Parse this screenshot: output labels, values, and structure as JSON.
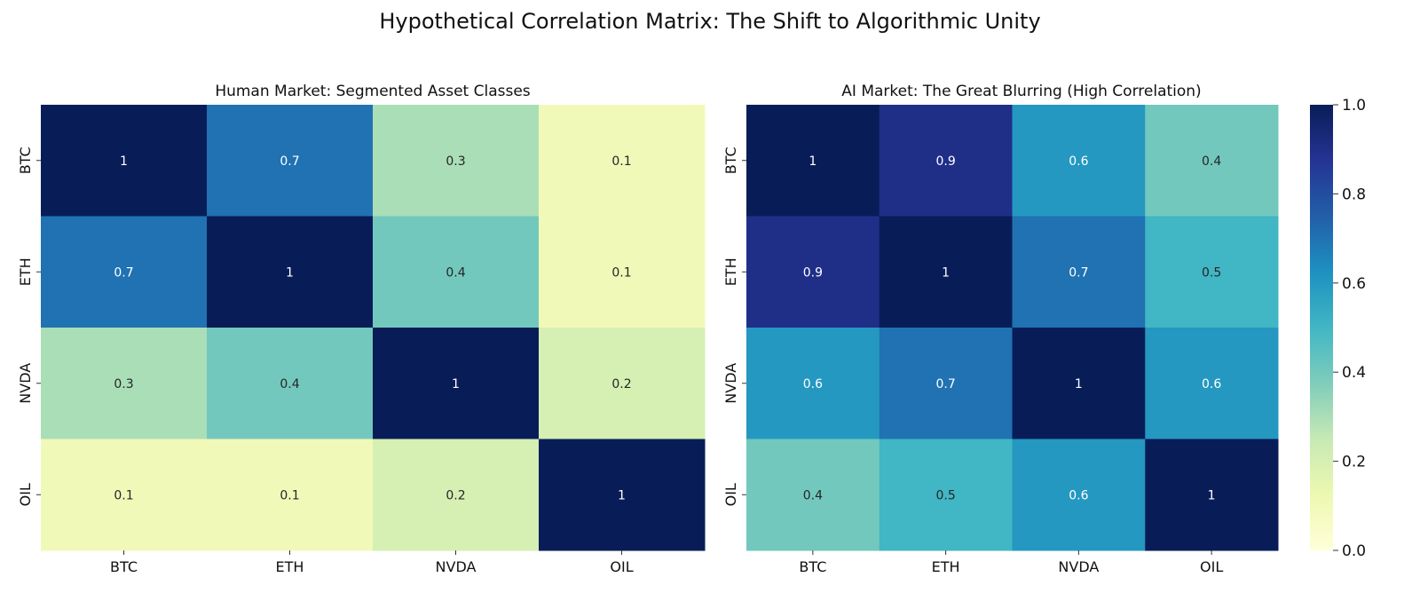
{
  "figure": {
    "title": "Hypothetical Correlation Matrix: The Shift to Algorithmic Unity"
  },
  "chart_data": [
    {
      "type": "heatmap",
      "title": "Human Market: Segmented Asset Classes",
      "x_labels": [
        "BTC",
        "ETH",
        "NVDA",
        "OIL"
      ],
      "y_labels": [
        "BTC",
        "ETH",
        "NVDA",
        "OIL"
      ],
      "values": [
        [
          1,
          0.7,
          0.3,
          0.1
        ],
        [
          0.7,
          1,
          0.4,
          0.1
        ],
        [
          0.3,
          0.4,
          1,
          0.2
        ],
        [
          0.1,
          0.1,
          0.2,
          1
        ]
      ],
      "annotate": true,
      "colormap": "YlGnBu",
      "vmin": 0.0,
      "vmax": 1.0
    },
    {
      "type": "heatmap",
      "title": "AI Market: The Great Blurring (High Correlation)",
      "x_labels": [
        "BTC",
        "ETH",
        "NVDA",
        "OIL"
      ],
      "y_labels": [
        "BTC",
        "ETH",
        "NVDA",
        "OIL"
      ],
      "values": [
        [
          1,
          0.9,
          0.6,
          0.4
        ],
        [
          0.9,
          1,
          0.7,
          0.5
        ],
        [
          0.6,
          0.7,
          1,
          0.6
        ],
        [
          0.4,
          0.5,
          0.6,
          1
        ]
      ],
      "annotate": true,
      "colormap": "YlGnBu",
      "vmin": 0.0,
      "vmax": 1.0
    }
  ],
  "colorbar": {
    "ticks": [
      "0.0",
      "0.2",
      "0.4",
      "0.6",
      "0.8",
      "1.0"
    ],
    "tick_values": [
      0.0,
      0.2,
      0.4,
      0.6,
      0.8,
      1.0
    ],
    "colormap": "YlGnBu"
  },
  "colors": {
    "colormap_stops": [
      "#ffffd9",
      "#edf8b1",
      "#c7e9b4",
      "#7fcdbb",
      "#41b6c4",
      "#1d91c0",
      "#225ea8",
      "#253494",
      "#081d58"
    ],
    "dark_text": "#262626",
    "light_text": "#ffffff"
  }
}
